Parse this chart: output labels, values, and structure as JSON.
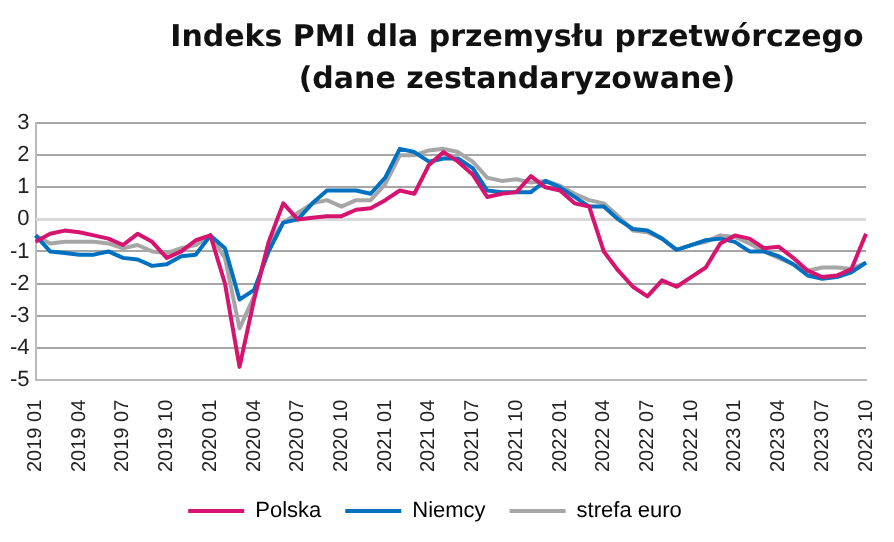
{
  "chart_data": {
    "type": "line",
    "title": "Indeks PMI dla przemysłu przetwórczego\n(dane zestandaryzowane)",
    "categories": [
      "2019 01",
      null,
      null,
      "2019 04",
      null,
      null,
      "2019 07",
      null,
      null,
      "2019 10",
      null,
      null,
      "2020 01",
      null,
      null,
      "2020 04",
      null,
      null,
      "2020 07",
      null,
      null,
      "2020 10",
      null,
      null,
      "2021 01",
      null,
      null,
      "2021 04",
      null,
      null,
      "2021 07",
      null,
      null,
      "2021 10",
      null,
      null,
      "2022 01",
      null,
      null,
      "2022 04",
      null,
      null,
      "2022 07",
      null,
      null,
      "2022 10",
      null,
      null,
      "2023 01",
      null,
      null,
      "2023 04",
      null,
      null,
      "2023 07",
      null,
      null,
      "2023 10"
    ],
    "series": [
      {
        "name": "Polska",
        "color": "#d6136f",
        "values": [
          -0.7,
          -0.45,
          -0.35,
          -0.4,
          -0.5,
          -0.6,
          -0.8,
          -0.45,
          -0.7,
          -1.2,
          -1.0,
          -0.65,
          -0.5,
          -2.0,
          -4.6,
          -2.5,
          -0.7,
          0.5,
          0.0,
          0.05,
          0.1,
          0.1,
          0.3,
          0.35,
          0.6,
          0.9,
          0.8,
          1.7,
          2.1,
          1.8,
          1.4,
          0.7,
          0.8,
          0.85,
          1.35,
          1.0,
          0.9,
          0.5,
          0.4,
          -1.0,
          -1.6,
          -2.1,
          -2.4,
          -1.9,
          -2.1,
          -1.8,
          -1.5,
          -0.75,
          -0.5,
          -0.6,
          -0.9,
          -0.85,
          -1.2,
          -1.6,
          -1.8,
          -1.75,
          -1.55,
          -0.45
        ]
      },
      {
        "name": "Niemcy",
        "color": "#0070c0",
        "values": [
          -0.5,
          -1.0,
          -1.05,
          -1.1,
          -1.1,
          -1.0,
          -1.2,
          -1.25,
          -1.45,
          -1.4,
          -1.15,
          -1.1,
          -0.5,
          -0.9,
          -2.5,
          -2.2,
          -1.0,
          -0.1,
          0.0,
          0.5,
          0.9,
          0.9,
          0.9,
          0.8,
          1.3,
          2.2,
          2.1,
          1.8,
          1.9,
          1.9,
          1.6,
          0.9,
          0.85,
          0.85,
          0.85,
          1.2,
          1.0,
          0.7,
          0.4,
          0.4,
          0.0,
          -0.3,
          -0.35,
          -0.6,
          -0.95,
          -0.8,
          -0.65,
          -0.6,
          -0.7,
          -1.0,
          -1.0,
          -1.15,
          -1.4,
          -1.75,
          -1.85,
          -1.8,
          -1.65,
          -1.35
        ]
      },
      {
        "name": "strefa euro",
        "color": "#a6a6a6",
        "values": [
          -0.5,
          -0.75,
          -0.7,
          -0.7,
          -0.7,
          -0.75,
          -0.9,
          -0.8,
          -1.0,
          -1.05,
          -0.9,
          -0.8,
          -0.5,
          -1.2,
          -3.4,
          -2.4,
          -0.8,
          -0.1,
          0.2,
          0.5,
          0.6,
          0.4,
          0.6,
          0.6,
          1.1,
          2.0,
          2.0,
          2.15,
          2.2,
          2.1,
          1.8,
          1.3,
          1.2,
          1.25,
          1.15,
          1.2,
          1.05,
          0.8,
          0.6,
          0.5,
          0.1,
          -0.35,
          -0.4,
          -0.6,
          -0.95,
          -0.8,
          -0.7,
          -0.5,
          -0.55,
          -0.75,
          -1.0,
          -1.2,
          -1.4,
          -1.6,
          -1.5,
          -1.5,
          -1.55,
          -1.35
        ]
      }
    ],
    "ylim": [
      -5,
      3
    ],
    "yticks": [
      -5,
      -4,
      -3,
      -2,
      -1,
      0,
      1,
      2,
      3
    ],
    "grid": "y",
    "marker": "none",
    "legend": "bottom",
    "ref_lines": [
      {
        "axis": "y",
        "value": 0,
        "color": "#d9d9d9"
      }
    ]
  }
}
